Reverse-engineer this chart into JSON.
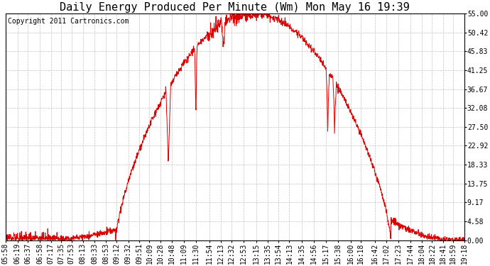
{
  "title": "Daily Energy Produced Per Minute (Wm) Mon May 16 19:39",
  "copyright": "Copyright 2011 Cartronics.com",
  "line_color": "#dd0000",
  "bg_color": "#ffffff",
  "plot_bg_color": "#ffffff",
  "grid_color": "#bbbbbb",
  "ylim": [
    0,
    55.0
  ],
  "yticks": [
    0.0,
    4.58,
    9.17,
    13.75,
    18.33,
    22.92,
    27.5,
    32.08,
    36.67,
    41.25,
    45.83,
    50.42,
    55.0
  ],
  "ytick_labels": [
    "0.00",
    "4.58",
    "9.17",
    "13.75",
    "18.33",
    "22.92",
    "27.50",
    "32.08",
    "36.67",
    "41.25",
    "45.83",
    "50.42",
    "55.00"
  ],
  "xtick_labels": [
    "05:58",
    "06:19",
    "06:37",
    "06:58",
    "07:17",
    "07:35",
    "07:53",
    "08:13",
    "08:33",
    "08:53",
    "09:12",
    "09:32",
    "09:51",
    "10:09",
    "10:28",
    "10:48",
    "11:09",
    "11:30",
    "11:54",
    "12:13",
    "12:32",
    "12:53",
    "13:15",
    "13:35",
    "13:54",
    "14:13",
    "14:35",
    "14:56",
    "15:17",
    "15:38",
    "16:00",
    "16:18",
    "16:42",
    "17:02",
    "17:23",
    "17:44",
    "18:04",
    "18:22",
    "18:41",
    "18:59",
    "19:18"
  ],
  "title_fontsize": 11,
  "copyright_fontsize": 7,
  "tick_fontsize": 7
}
